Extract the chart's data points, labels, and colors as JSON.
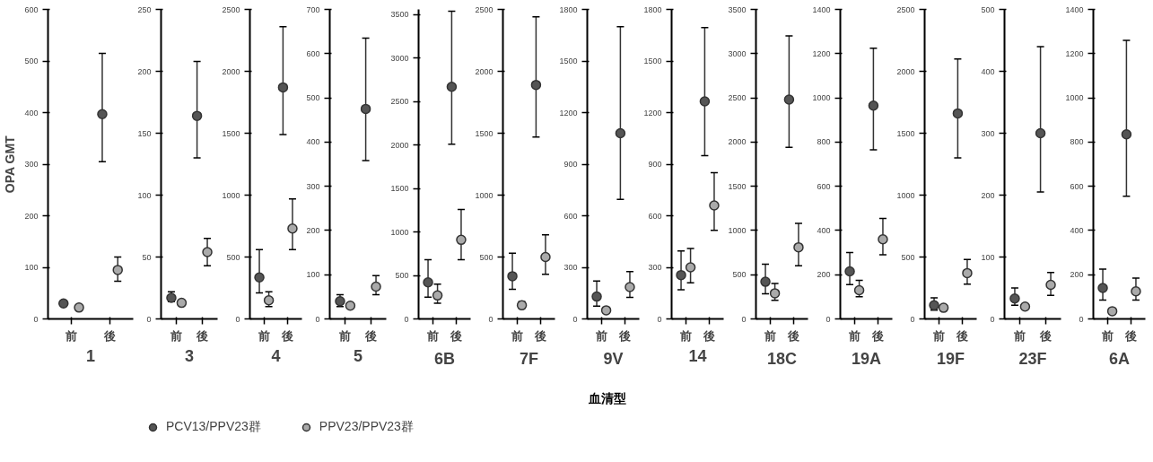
{
  "chart_data": [
    {
      "type": "scatter",
      "xlabel": "1",
      "ylabel": "OPA GMT",
      "categories": [
        "前",
        "後"
      ],
      "ylim": [
        0,
        600
      ],
      "yticks": [
        0,
        100,
        200,
        300,
        400,
        500,
        600
      ],
      "marker": "circle",
      "grid": false,
      "legend": "bottom",
      "series": [
        {
          "name": "PCV13/PPV23群",
          "color": "#555555",
          "values": [
            30,
            397
          ],
          "errors": [
            null,
            [
              305,
              515
            ]
          ]
        },
        {
          "name": "PPV23/PPV23群",
          "color": "#aaaaaa",
          "values": [
            22,
            95
          ],
          "errors": [
            null,
            [
              73,
              120
            ]
          ]
        }
      ]
    },
    {
      "type": "scatter",
      "xlabel": "3",
      "categories": [
        "前",
        "後"
      ],
      "ylim": [
        0,
        250
      ],
      "yticks": [
        0,
        50,
        100,
        150,
        200,
        250
      ],
      "marker": "circle",
      "grid": false,
      "series": [
        {
          "color": "#555555",
          "values": [
            17,
            164
          ],
          "errors": [
            [
              14,
              22
            ],
            [
              130,
              208
            ]
          ]
        },
        {
          "color": "#aaaaaa",
          "values": [
            13,
            54
          ],
          "errors": [
            null,
            [
              43,
              65
            ]
          ]
        }
      ]
    },
    {
      "type": "scatter",
      "xlabel": "4",
      "categories": [
        "前",
        "後"
      ],
      "ylim": [
        0,
        2500
      ],
      "yticks": [
        0,
        500,
        1000,
        1500,
        2000,
        2500
      ],
      "marker": "circle",
      "grid": false,
      "series": [
        {
          "color": "#555555",
          "values": [
            335,
            1870
          ],
          "errors": [
            [
              210,
              560
            ],
            [
              1490,
              2360
            ]
          ]
        },
        {
          "color": "#aaaaaa",
          "values": [
            150,
            730
          ],
          "errors": [
            [
              100,
              220
            ],
            [
              560,
              970
            ]
          ]
        }
      ]
    },
    {
      "type": "scatter",
      "xlabel": "5",
      "categories": [
        "前",
        "後"
      ],
      "ylim": [
        0,
        700
      ],
      "yticks": [
        0,
        100,
        200,
        300,
        400,
        500,
        600,
        700
      ],
      "marker": "circle",
      "grid": false,
      "series": [
        {
          "color": "#555555",
          "values": [
            40,
            475
          ],
          "errors": [
            [
              28,
              55
            ],
            [
              358,
              635
            ]
          ]
        },
        {
          "color": "#aaaaaa",
          "values": [
            30,
            73
          ],
          "errors": [
            null,
            [
              55,
              98
            ]
          ]
        }
      ]
    },
    {
      "type": "scatter",
      "xlabel": "6B",
      "categories": [
        "前",
        "後"
      ],
      "ylim": [
        0,
        3560
      ],
      "yticks": [
        0,
        500,
        1000,
        1500,
        2000,
        2500,
        3000,
        3500
      ],
      "marker": "circle",
      "grid": false,
      "series": [
        {
          "color": "#555555",
          "values": [
            420,
            2670
          ],
          "errors": [
            [
              250,
              680
            ],
            [
              2010,
              3540
            ]
          ]
        },
        {
          "color": "#aaaaaa",
          "values": [
            270,
            910
          ],
          "errors": [
            [
              180,
              400
            ],
            [
              680,
              1260
            ]
          ]
        }
      ]
    },
    {
      "type": "scatter",
      "xlabel": "7F",
      "categories": [
        "前",
        "後"
      ],
      "ylim": [
        0,
        2500
      ],
      "yticks": [
        0,
        500,
        1000,
        1500,
        2000,
        2500
      ],
      "marker": "circle",
      "grid": false,
      "series": [
        {
          "color": "#555555",
          "values": [
            345,
            1890
          ],
          "errors": [
            [
              240,
              530
            ],
            [
              1470,
              2440
            ]
          ]
        },
        {
          "color": "#aaaaaa",
          "values": [
            110,
            500
          ],
          "errors": [
            [
              90,
              140
            ],
            [
              360,
              680
            ]
          ]
        }
      ]
    },
    {
      "type": "scatter",
      "xlabel": "9V",
      "annotations": [
        "血清型"
      ],
      "categories": [
        "前",
        "後"
      ],
      "ylim": [
        0,
        1800
      ],
      "yticks": [
        0,
        300,
        600,
        900,
        1200,
        1500,
        1800
      ],
      "marker": "circle",
      "grid": false,
      "series": [
        {
          "color": "#555555",
          "values": [
            130,
            1080
          ],
          "errors": [
            [
              75,
              220
            ],
            [
              695,
              1700
            ]
          ]
        },
        {
          "color": "#aaaaaa",
          "values": [
            50,
            185
          ],
          "errors": [
            null,
            [
              125,
              275
            ]
          ]
        }
      ]
    },
    {
      "type": "scatter",
      "xlabel": "14",
      "categories": [
        "前",
        "後"
      ],
      "ylim": [
        0,
        1800
      ],
      "yticks": [
        0,
        300,
        600,
        900,
        1200,
        1500,
        1800
      ],
      "marker": "circle",
      "grid": false,
      "series": [
        {
          "color": "#555555",
          "values": [
            255,
            1265
          ],
          "errors": [
            [
              170,
              395
            ],
            [
              950,
              1695
            ]
          ]
        },
        {
          "color": "#aaaaaa",
          "values": [
            300,
            660
          ],
          "errors": [
            [
              210,
              410
            ],
            [
              515,
              850
            ]
          ]
        }
      ]
    },
    {
      "type": "scatter",
      "xlabel": "18C",
      "categories": [
        "前",
        "後"
      ],
      "ylim": [
        0,
        3500
      ],
      "yticks": [
        0,
        500,
        1000,
        1500,
        2000,
        2500,
        3000,
        3500
      ],
      "marker": "circle",
      "grid": false,
      "series": [
        {
          "color": "#555555",
          "values": [
            420,
            2480
          ],
          "errors": [
            [
              285,
              620
            ],
            [
              1940,
              3200
            ]
          ]
        },
        {
          "color": "#aaaaaa",
          "values": [
            290,
            810
          ],
          "errors": [
            [
              210,
              400
            ],
            [
              600,
              1080
            ]
          ]
        }
      ]
    },
    {
      "type": "scatter",
      "xlabel": "19A",
      "categories": [
        "前",
        "後"
      ],
      "ylim": [
        0,
        1400
      ],
      "yticks": [
        0,
        200,
        400,
        600,
        800,
        1000,
        1200,
        1400
      ],
      "marker": "circle",
      "grid": false,
      "series": [
        {
          "color": "#555555",
          "values": [
            215,
            965
          ],
          "errors": [
            [
              155,
              300
            ],
            [
              765,
              1225
            ]
          ]
        },
        {
          "color": "#aaaaaa",
          "values": [
            130,
            360
          ],
          "errors": [
            [
              100,
              175
            ],
            [
              290,
              455
            ]
          ]
        }
      ]
    },
    {
      "type": "scatter",
      "xlabel": "19F",
      "categories": [
        "前",
        "後"
      ],
      "ylim": [
        0,
        2500
      ],
      "yticks": [
        0,
        500,
        1000,
        1500,
        2000,
        2500
      ],
      "marker": "circle",
      "grid": false,
      "series": [
        {
          "color": "#555555",
          "values": [
            110,
            1660
          ],
          "errors": [
            [
              70,
              170
            ],
            [
              1300,
              2100
            ]
          ]
        },
        {
          "color": "#aaaaaa",
          "values": [
            90,
            370
          ],
          "errors": [
            null,
            [
              280,
              480
            ]
          ]
        }
      ]
    },
    {
      "type": "scatter",
      "xlabel": "23F",
      "categories": [
        "前",
        "後"
      ],
      "ylim": [
        0,
        500
      ],
      "yticks": [
        0,
        100,
        200,
        300,
        400,
        500
      ],
      "marker": "circle",
      "grid": false,
      "series": [
        {
          "color": "#555555",
          "values": [
            33,
            300
          ],
          "errors": [
            [
              22,
              50
            ],
            [
              205,
              440
            ]
          ]
        },
        {
          "color": "#aaaaaa",
          "values": [
            20,
            55
          ],
          "errors": [
            null,
            [
              38,
              75
            ]
          ]
        }
      ]
    },
    {
      "type": "scatter",
      "xlabel": "6A",
      "categories": [
        "前",
        "後"
      ],
      "ylim": [
        0,
        1400
      ],
      "yticks": [
        0,
        200,
        400,
        600,
        800,
        1000,
        1200,
        1400
      ],
      "marker": "circle",
      "grid": false,
      "series": [
        {
          "color": "#555555",
          "values": [
            140,
            835
          ],
          "errors": [
            [
              85,
              225
            ],
            [
              555,
              1260
            ]
          ]
        },
        {
          "color": "#aaaaaa",
          "values": [
            35,
            125
          ],
          "errors": [
            null,
            [
              85,
              185
            ]
          ]
        }
      ]
    }
  ]
}
